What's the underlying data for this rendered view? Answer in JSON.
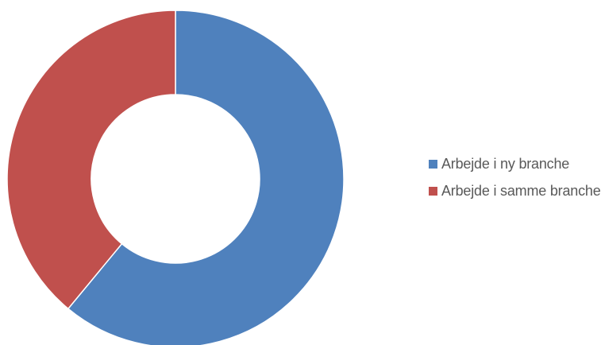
{
  "chart_data": {
    "type": "pie",
    "variant": "donut",
    "categories": [
      "Arbejde i ny branche",
      "Arbejde i samme branche"
    ],
    "values": [
      61,
      39
    ],
    "colors": [
      "#4f81bd",
      "#c0504d"
    ],
    "title": "",
    "legend_position": "right",
    "start_angle_deg": 0,
    "direction": "clockwise"
  },
  "legend": {
    "items": [
      {
        "label": "Arbejde i ny branche",
        "color": "#4f81bd"
      },
      {
        "label": "Arbejde i samme branche",
        "color": "#c0504d"
      }
    ]
  }
}
